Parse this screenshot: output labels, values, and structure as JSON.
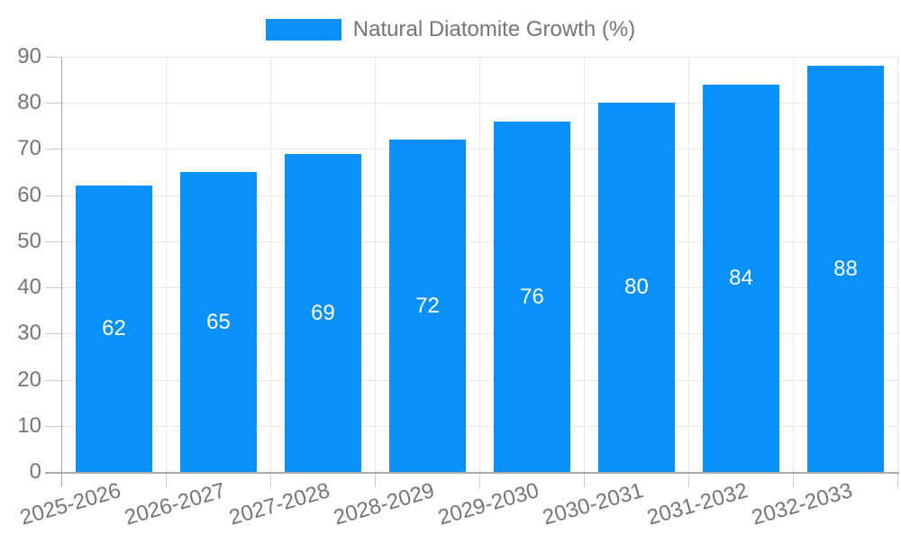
{
  "chart_data": {
    "type": "bar",
    "title": "",
    "legend_position": "top",
    "categories": [
      "2025-2026",
      "2026-2027",
      "2027-2028",
      "2028-2029",
      "2029-2030",
      "2030-2031",
      "2031-2032",
      "2032-2033"
    ],
    "series": [
      {
        "name": "Natural Diatomite Growth (%)",
        "values": [
          62,
          65,
          69,
          72,
          76,
          80,
          84,
          88
        ]
      }
    ],
    "value_labels": [
      "62",
      "65",
      "69",
      "72",
      "76",
      "80",
      "84",
      "88"
    ],
    "ylim": [
      0,
      90
    ],
    "ytick_step": 10,
    "ytick_labels": [
      "0",
      "10",
      "20",
      "30",
      "40",
      "50",
      "60",
      "70",
      "80",
      "90"
    ],
    "grid": true,
    "colors": {
      "bar": "#0990F9",
      "grid": "#E8E8E8",
      "axis": "#A6A6A6",
      "baseline": "#ABABAB",
      "tick": "#CCCCCC",
      "text": "#757575",
      "value_text": "#FFFFFF",
      "background": "#FFFFFF"
    }
  }
}
